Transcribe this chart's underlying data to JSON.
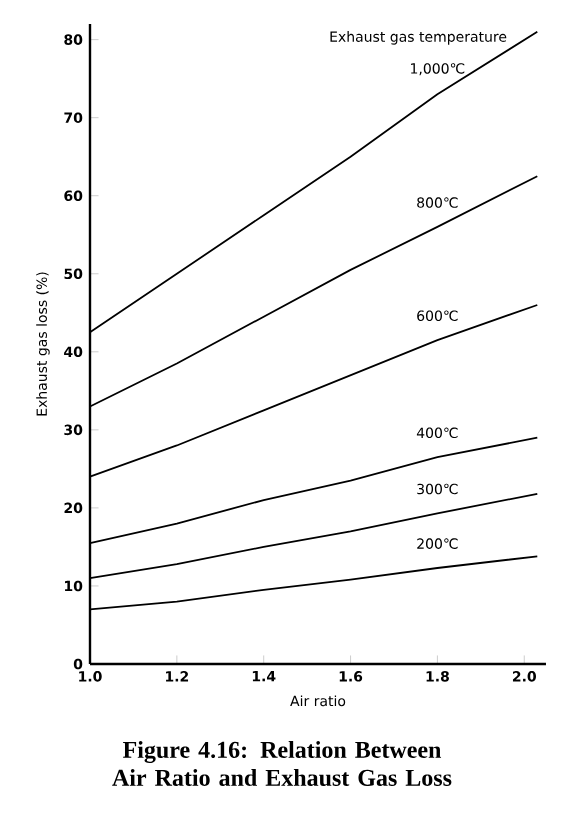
{
  "chart_data": {
    "type": "line",
    "title": "Figure 4.16: Relation Between Air Ratio and Exhaust Gas Loss",
    "xlabel": "Air ratio",
    "ylabel": "Exhaust gas loss (%)",
    "legend_title": "Exhaust gas temperature",
    "x": [
      1.0,
      1.2,
      1.4,
      1.6,
      1.8,
      2.03
    ],
    "series": [
      {
        "name": "1,000℃",
        "color": "#000000",
        "values": [
          42.5,
          50,
          57.5,
          65,
          73,
          81
        ]
      },
      {
        "name": "800℃",
        "color": "#000000",
        "values": [
          33,
          38.5,
          44.5,
          50.5,
          56,
          62.5
        ]
      },
      {
        "name": "600℃",
        "color": "#000000",
        "values": [
          24,
          28,
          32.5,
          37,
          41.5,
          46
        ]
      },
      {
        "name": "400℃",
        "color": "#000000",
        "values": [
          15.5,
          18,
          21,
          23.5,
          26.5,
          29
        ]
      },
      {
        "name": "300℃",
        "color": "#000000",
        "values": [
          11,
          12.8,
          15,
          17,
          19.3,
          21.8
        ]
      },
      {
        "name": "200℃",
        "color": "#000000",
        "values": [
          7,
          8,
          9.5,
          10.8,
          12.3,
          13.8
        ]
      }
    ],
    "xlim": [
      1.0,
      2.05
    ],
    "ylim": [
      0,
      82
    ],
    "xticks": [
      {
        "value": 1.0,
        "label": "1.0"
      },
      {
        "value": 1.2,
        "label": "1.2"
      },
      {
        "value": 1.4,
        "label": "1.4"
      },
      {
        "value": 1.6,
        "label": "1.6"
      },
      {
        "value": 1.8,
        "label": "1.8"
      },
      {
        "value": 2.0,
        "label": "2.0"
      }
    ],
    "yticks": [
      0,
      10,
      20,
      30,
      40,
      50,
      60,
      70,
      80
    ],
    "grid": false,
    "legend": false,
    "marker": "none",
    "line_style": "solid"
  }
}
